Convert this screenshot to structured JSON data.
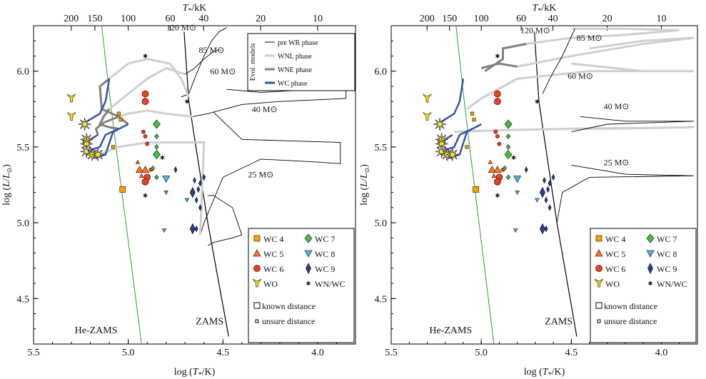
{
  "chart_data": [
    {
      "type": "scatter",
      "panel": "left",
      "xlabel": "log (T*/K)",
      "ylabel": "log (L/L⊙)",
      "top_xlabel": "T*/kK",
      "xlim": [
        5.5,
        3.8
      ],
      "ylim": [
        4.2,
        6.3
      ],
      "x_ticks": [
        "5.5",
        "5.0",
        "4.5",
        "4.0"
      ],
      "x_tick_values": [
        5.5,
        5.0,
        4.5,
        4.0
      ],
      "y_ticks": [
        "4.5",
        "5.0",
        "5.5",
        "6.0"
      ],
      "y_tick_values": [
        4.5,
        5.0,
        5.5,
        6.0
      ],
      "top_ticks": [
        "200",
        "150",
        "100",
        "60",
        "40",
        "20",
        "10"
      ],
      "top_tick_values": [
        200,
        150,
        100,
        60,
        40,
        20,
        10
      ],
      "zams_label": "ZAMS",
      "hezams_label": "He-ZAMS",
      "mass_labels": [
        "120 M⊙",
        "85 M⊙",
        "60 M⊙",
        "40 M⊙",
        "25 M⊙"
      ],
      "mass_label_pos": [
        [
          4.72,
          6.27
        ],
        [
          4.56,
          6.12
        ],
        [
          4.5,
          5.98
        ],
        [
          4.28,
          5.73
        ],
        [
          4.3,
          5.3
        ]
      ],
      "tracks": [
        {
          "mass": "120",
          "pts": [
            [
              4.48,
              6.29
            ],
            [
              4.49,
              6.28
            ],
            [
              4.52,
              6.26
            ],
            [
              4.56,
              6.2
            ],
            [
              4.6,
              6.1
            ],
            [
              4.65,
              5.95
            ],
            [
              4.68,
              5.85
            ],
            [
              4.72,
              5.83
            ]
          ]
        },
        {
          "mass": "85",
          "pts": [
            [
              4.52,
              6.14
            ],
            [
              4.55,
              6.13
            ],
            [
              4.6,
              6.08
            ],
            [
              4.65,
              6.02
            ],
            [
              4.7,
              5.98
            ]
          ]
        },
        {
          "mass": "60",
          "pts": [
            [
              4.48,
              5.88
            ],
            [
              4.3,
              5.86
            ],
            [
              3.85,
              5.89
            ],
            [
              3.85,
              5.82
            ],
            [
              4.2,
              5.8
            ],
            [
              4.4,
              5.78
            ],
            [
              4.58,
              5.72
            ],
            [
              4.66,
              5.7
            ]
          ]
        },
        {
          "mass": "40",
          "pts": [
            [
              4.55,
              5.73
            ],
            [
              4.4,
              5.55
            ],
            [
              3.88,
              5.53
            ],
            [
              3.88,
              5.39
            ],
            [
              4.0,
              5.4
            ],
            [
              4.3,
              5.42
            ],
            [
              4.5,
              5.3
            ],
            [
              4.6,
              5.0
            ],
            [
              4.62,
              4.92
            ]
          ]
        },
        {
          "mass": "25",
          "pts": [
            [
              4.58,
              5.18
            ],
            [
              4.55,
              5.18
            ],
            [
              4.45,
              5.1
            ],
            [
              4.4,
              4.92
            ],
            [
              4.45,
              4.9
            ],
            [
              4.55,
              4.87
            ],
            [
              4.58,
              4.85
            ]
          ]
        }
      ],
      "legend_phases": [
        {
          "label": "pre WR phase",
          "color": "#000000",
          "width": 1
        },
        {
          "label": "WNL phase",
          "color": "#cfcfcf",
          "width": 3
        },
        {
          "label": "WNE phase",
          "color": "#808080",
          "width": 3
        },
        {
          "label": "WC phase",
          "color": "#3355aa",
          "width": 3
        }
      ],
      "legend_title": "Evol. models",
      "stars": [
        {
          "type": "WO",
          "x": 5.3,
          "y": 5.82
        },
        {
          "type": "WO",
          "x": 5.3,
          "y": 5.7
        },
        {
          "type": "WO_sun",
          "x": 5.23,
          "y": 5.65
        },
        {
          "type": "WO_sun",
          "x": 5.22,
          "y": 5.55
        },
        {
          "type": "WO_sun",
          "x": 5.22,
          "y": 5.52
        },
        {
          "type": "WO_sun",
          "x": 5.22,
          "y": 5.47
        },
        {
          "type": "WO_sun",
          "x": 5.19,
          "y": 5.45
        },
        {
          "type": "WO_sun",
          "x": 5.16,
          "y": 5.45
        },
        {
          "type": "WC4",
          "x": 5.05,
          "y": 5.72,
          "small": true
        },
        {
          "type": "WC4",
          "x": 5.04,
          "y": 5.68,
          "small": true
        },
        {
          "type": "WC4",
          "x": 5.08,
          "y": 5.5,
          "small": true
        },
        {
          "type": "WC4",
          "x": 5.03,
          "y": 5.22
        },
        {
          "type": "WC6",
          "x": 4.91,
          "y": 5.85
        },
        {
          "type": "WC6",
          "x": 4.91,
          "y": 5.8
        },
        {
          "type": "WC6",
          "x": 4.92,
          "y": 5.6,
          "small": true
        },
        {
          "type": "WC6",
          "x": 4.91,
          "y": 5.57,
          "small": true
        },
        {
          "type": "WC6",
          "x": 4.9,
          "y": 5.52,
          "small": true
        },
        {
          "type": "WC6",
          "x": 4.9,
          "y": 5.3
        },
        {
          "type": "WC6",
          "x": 4.91,
          "y": 5.27
        },
        {
          "type": "WC6",
          "x": 4.88,
          "y": 5.35,
          "small": true
        },
        {
          "type": "WC5",
          "x": 4.95,
          "y": 5.4,
          "small": true
        },
        {
          "type": "WC5",
          "x": 4.94,
          "y": 5.35
        },
        {
          "type": "WC5",
          "x": 4.91,
          "y": 5.35
        },
        {
          "type": "WC5",
          "x": 4.93,
          "y": 5.31,
          "small": true
        },
        {
          "type": "WC7",
          "x": 4.85,
          "y": 5.65
        },
        {
          "type": "WC7",
          "x": 4.85,
          "y": 5.57,
          "small": true
        },
        {
          "type": "WC7",
          "x": 4.85,
          "y": 5.5,
          "small": true
        },
        {
          "type": "WC7",
          "x": 4.85,
          "y": 5.45
        },
        {
          "type": "WC7",
          "x": 4.87,
          "y": 5.36,
          "small": true
        },
        {
          "type": "WC7",
          "x": 4.85,
          "y": 5.3,
          "small": true
        },
        {
          "type": "WC8",
          "x": 4.8,
          "y": 5.29
        },
        {
          "type": "WC8",
          "x": 4.8,
          "y": 5.2,
          "small": true
        },
        {
          "type": "WC8",
          "x": 4.81,
          "y": 4.95,
          "small": true
        },
        {
          "type": "WC8",
          "x": 4.69,
          "y": 5.15,
          "small": true
        },
        {
          "type": "WC9",
          "x": 4.66,
          "y": 5.2
        },
        {
          "type": "WC9",
          "x": 4.65,
          "y": 5.28,
          "small": true
        },
        {
          "type": "WC9",
          "x": 4.63,
          "y": 5.22,
          "small": true
        },
        {
          "type": "WC9",
          "x": 4.62,
          "y": 5.26,
          "small": true
        },
        {
          "type": "WC9",
          "x": 4.64,
          "y": 5.15,
          "small": true
        },
        {
          "type": "WC9",
          "x": 4.62,
          "y": 5.1,
          "small": true
        },
        {
          "type": "WC9",
          "x": 4.6,
          "y": 5.3,
          "small": true
        },
        {
          "type": "WC9",
          "x": 4.66,
          "y": 4.96
        },
        {
          "type": "WC9",
          "x": 4.64,
          "y": 4.96,
          "small": true
        },
        {
          "type": "WC9",
          "x": 4.75,
          "y": 5.35,
          "small": true
        },
        {
          "type": "WNWC",
          "x": 4.91,
          "y": 6.1
        },
        {
          "type": "WNWC",
          "x": 4.69,
          "y": 5.8
        },
        {
          "type": "WNWC",
          "x": 4.82,
          "y": 5.43
        },
        {
          "type": "WNWC",
          "x": 4.91,
          "y": 5.18
        }
      ]
    },
    {
      "type": "scatter",
      "panel": "right",
      "xlabel": "log (T*/K)",
      "ylabel": "log (L/L⊙)",
      "top_xlabel": "T*/kK",
      "xlim": [
        5.5,
        3.8
      ],
      "ylim": [
        4.2,
        6.3
      ],
      "x_ticks": [
        "5.5",
        "5.0",
        "4.5",
        "4.0"
      ],
      "x_tick_values": [
        5.5,
        5.0,
        4.5,
        4.0
      ],
      "y_ticks": [
        "4.5",
        "5.0",
        "5.5",
        "6.0"
      ],
      "y_tick_values": [
        4.5,
        5.0,
        5.5,
        6.0
      ],
      "top_ticks": [
        "200",
        "150",
        "100",
        "60",
        "40",
        "20",
        "10"
      ],
      "top_tick_values": [
        200,
        150,
        100,
        60,
        40,
        20,
        10
      ],
      "zams_label": "ZAMS",
      "hezams_label": "He-ZAMS",
      "mass_labels": [
        "120 M⊙",
        "85 M⊙",
        "60 M⊙",
        "40 M⊙",
        "25 M⊙"
      ],
      "stars_note": "same star sample as left panel (WC4–WC9, WO, WN/WC)"
    }
  ],
  "legend_stars": [
    {
      "label": "WC 4",
      "type": "WC4"
    },
    {
      "label": "WC 7",
      "type": "WC7"
    },
    {
      "label": "WC 5",
      "type": "WC5"
    },
    {
      "label": "WC 8",
      "type": "WC8"
    },
    {
      "label": "WC 6",
      "type": "WC6"
    },
    {
      "label": "WC 9",
      "type": "WC9"
    },
    {
      "label": "WO",
      "type": "WO"
    },
    {
      "label": "WN/WC",
      "type": "WNWC"
    }
  ],
  "legend_distance": [
    "known distance",
    "unsure distance"
  ],
  "colors": {
    "WC4": "#f5a30a",
    "WC5": "#f07a30",
    "WC6": "#e8402a",
    "WC7": "#4cb848",
    "WC8": "#58b7c8",
    "WC9": "#2c3f86",
    "WO": "#f6e31c",
    "hezams": "#2e9b3a"
  }
}
